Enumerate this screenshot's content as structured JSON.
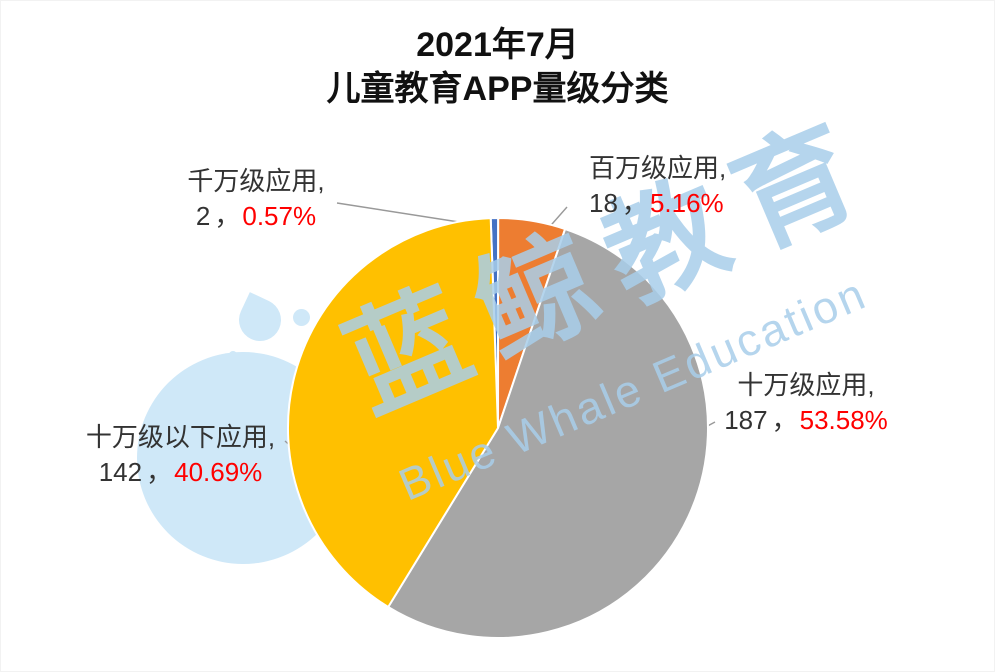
{
  "page": {
    "background": "#ffffff"
  },
  "title": {
    "line1": "2021年7月",
    "line2": "儿童教育APP量级分类"
  },
  "watermark": {
    "text_cn": "蓝鲸教育",
    "text_en": "Blue Whale Education"
  },
  "colors": {
    "percent_text": "#ff0000",
    "label_text": "#333333",
    "watermark_text": "rgba(168,206,234,0.85)",
    "splash": "#cfe8f8",
    "leader_line": "#999999"
  },
  "chart_data": {
    "type": "pie",
    "title": "2021年7月 儿童教育APP量级分类",
    "start_angle_deg": -92,
    "legend_position": "none",
    "grid": false,
    "slices": [
      {
        "label": "千万级应用",
        "count": 2,
        "percent": 0.57,
        "color": "#4472C4",
        "callout": {
          "line1": "千万级应用,",
          "count": "2",
          "sep": "，",
          "percent": "0.57%"
        }
      },
      {
        "label": "百万级应用",
        "count": 18,
        "percent": 5.16,
        "color": "#ED7D31",
        "callout": {
          "line1": "百万级应用,",
          "count": "18",
          "sep": "，",
          "percent": "5.16%"
        }
      },
      {
        "label": "十万级应用",
        "count": 187,
        "percent": 53.58,
        "color": "#A6A6A6",
        "callout": {
          "line1": "十万级应用,",
          "count": "187",
          "sep": "，",
          "percent": "53.58%"
        }
      },
      {
        "label": "十万级以下应用",
        "count": 142,
        "percent": 40.69,
        "color": "#FFC000",
        "callout": {
          "line1": "十万级以下应用,",
          "count": "142",
          "sep": "，",
          "percent": "40.69%"
        }
      }
    ]
  }
}
